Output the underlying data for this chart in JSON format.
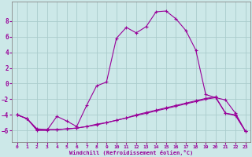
{
  "title": "",
  "xlabel": "Windchill (Refroidissement éolien,°C)",
  "background_color": "#cce8e8",
  "grid_color": "#aacccc",
  "line_color": "#990099",
  "x_ticks": [
    0,
    1,
    2,
    3,
    4,
    5,
    6,
    7,
    8,
    9,
    10,
    11,
    12,
    13,
    14,
    15,
    16,
    17,
    18,
    19,
    20,
    21,
    22,
    23
  ],
  "y_ticks": [
    -6,
    -4,
    -2,
    0,
    2,
    4,
    6,
    8
  ],
  "ylim": [
    -7.5,
    10.5
  ],
  "xlim": [
    -0.5,
    23.5
  ],
  "series1_x": [
    0,
    1,
    2,
    3,
    4,
    5,
    6,
    7,
    8,
    9,
    10,
    11,
    12,
    13,
    14,
    15,
    16,
    17,
    18,
    19,
    20,
    21,
    22,
    23
  ],
  "series1_y": [
    -4.0,
    -4.5,
    -6.0,
    -6.0,
    -4.2,
    -4.8,
    -5.5,
    -2.8,
    -0.3,
    0.2,
    5.8,
    7.2,
    6.5,
    7.3,
    9.2,
    9.3,
    8.3,
    6.8,
    4.3,
    -1.4,
    -1.8,
    -2.1,
    -3.8,
    -6.1
  ],
  "series2_x": [
    0,
    1,
    2,
    3,
    4,
    5,
    6,
    7,
    8,
    9,
    10,
    11,
    12,
    13,
    14,
    15,
    16,
    17,
    18,
    19,
    20,
    21,
    22,
    23
  ],
  "series2_y": [
    -4.0,
    -4.5,
    -5.8,
    -5.9,
    -5.9,
    -5.8,
    -5.7,
    -5.5,
    -5.3,
    -5.0,
    -4.7,
    -4.4,
    -4.1,
    -3.8,
    -3.5,
    -3.2,
    -2.9,
    -2.6,
    -2.3,
    -2.0,
    -1.8,
    -3.8,
    -4.1,
    -6.1
  ],
  "series3_x": [
    0,
    1,
    2,
    3,
    4,
    5,
    6,
    7,
    8,
    9,
    10,
    11,
    12,
    13,
    14,
    15,
    16,
    17,
    18,
    19,
    20,
    21,
    22,
    23
  ],
  "series3_y": [
    -4.0,
    -4.5,
    -5.9,
    -5.9,
    -5.9,
    -5.8,
    -5.7,
    -5.5,
    -5.2,
    -5.0,
    -4.7,
    -4.4,
    -4.0,
    -3.7,
    -3.4,
    -3.1,
    -2.8,
    -2.5,
    -2.2,
    -1.9,
    -1.7,
    -3.8,
    -4.0,
    -6.1
  ]
}
